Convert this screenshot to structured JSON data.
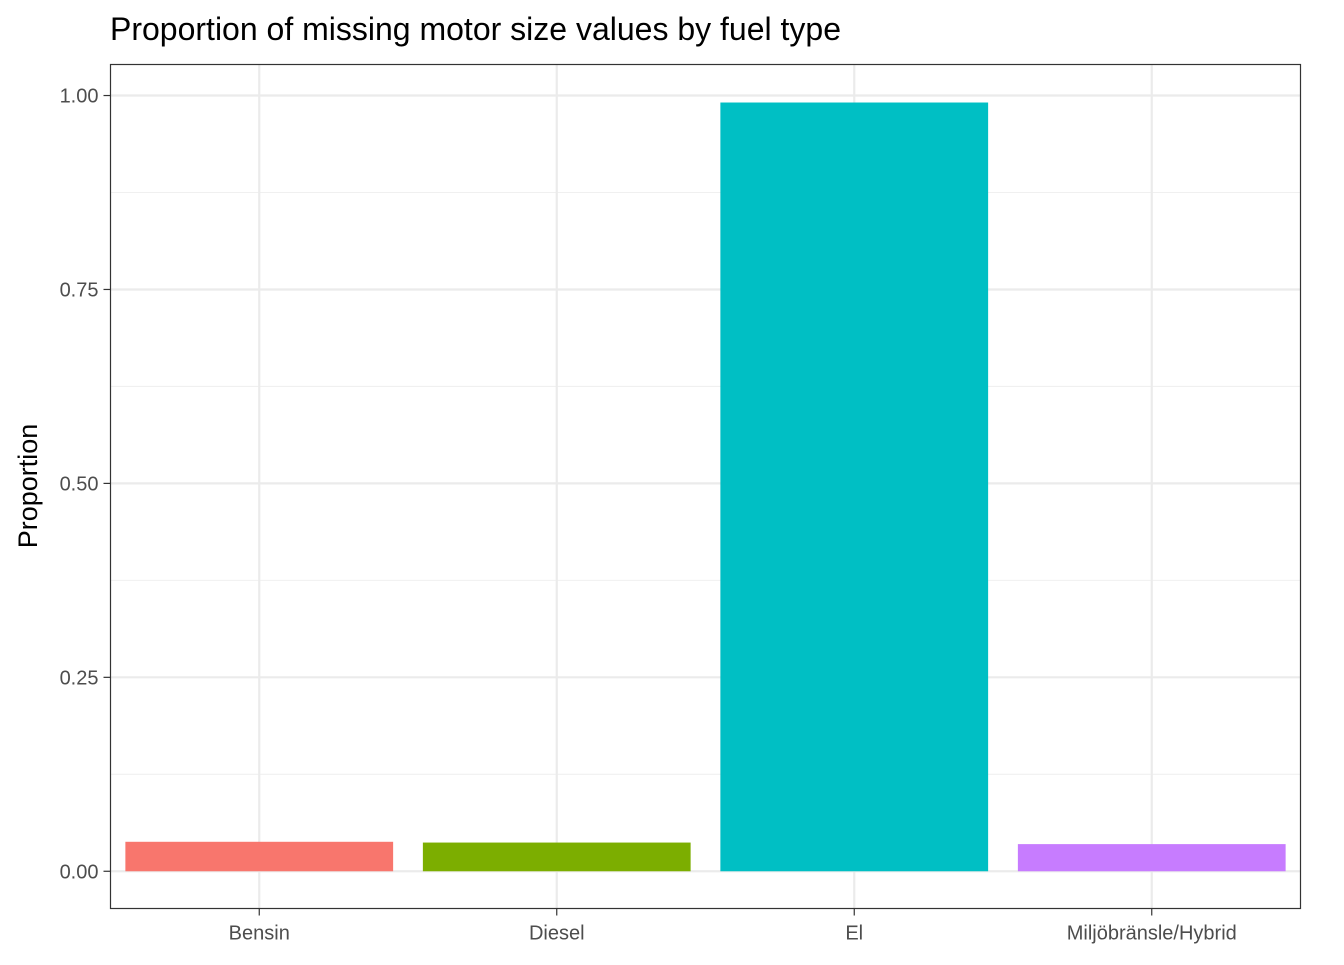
{
  "chart_data": {
    "type": "bar",
    "title": "Proportion of missing motor size values by fuel type",
    "xlabel": "",
    "ylabel": "Proportion",
    "categories": [
      "Bensin",
      "Diesel",
      "El",
      "Miljöbränsle/Hybrid"
    ],
    "values": [
      0.038,
      0.037,
      0.991,
      0.035
    ],
    "colors": [
      "#F8766D",
      "#7CAE00",
      "#00BFC4",
      "#C77CFF"
    ],
    "ylim": [
      -0.048,
      1.04
    ],
    "yticks": [
      0.0,
      0.25,
      0.5,
      0.75,
      1.0
    ],
    "ytick_labels": [
      "0.00",
      "0.25",
      "0.50",
      "0.75",
      "1.00"
    ],
    "grid": true,
    "legend": "none"
  }
}
